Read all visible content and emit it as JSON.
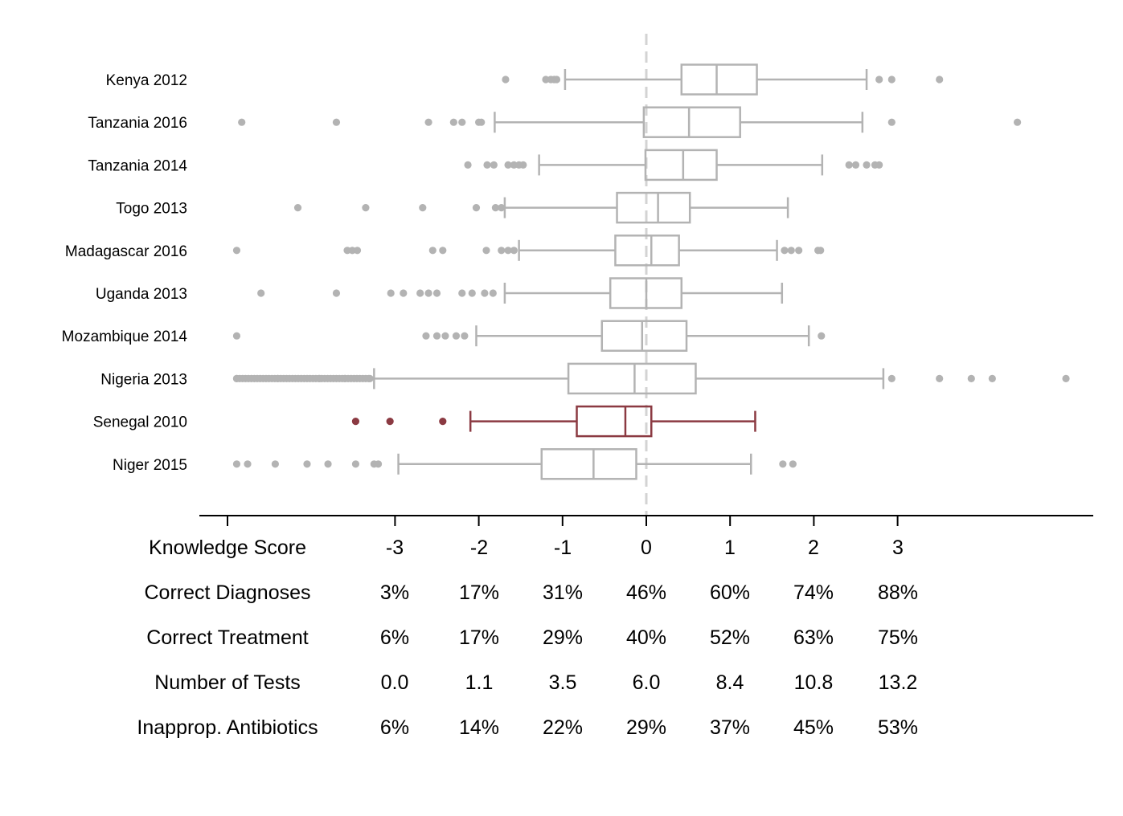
{
  "chart_data": {
    "type": "boxplot",
    "x_range": [
      -3.33,
      5.33
    ],
    "reference_line": 0,
    "colors": {
      "default": "#b3b3b3",
      "highlight": "#8b3a42",
      "reference": "#d3d3d3",
      "axis": "#000000"
    },
    "highlight_category": "Senegal 2010",
    "categories": [
      {
        "label": "Kenya 2012",
        "q1": 0.42,
        "median": 0.84,
        "q3": 1.32,
        "whisker_low": -0.97,
        "whisker_high": 2.63,
        "outliers": [
          -1.68,
          -1.2,
          -1.14,
          -1.1,
          -1.07,
          2.78,
          2.93,
          3.5
        ]
      },
      {
        "label": "Tanzania 2016",
        "q1": -0.03,
        "median": 0.51,
        "q3": 1.12,
        "whisker_low": -1.81,
        "whisker_high": 2.58,
        "outliers": [
          -4.83,
          -3.7,
          -2.6,
          -2.3,
          -2.2,
          -2.0,
          -1.97,
          2.93,
          4.43
        ]
      },
      {
        "label": "Tanzania 2014",
        "q1": -0.01,
        "median": 0.44,
        "q3": 0.84,
        "whisker_low": -1.28,
        "whisker_high": 2.1,
        "outliers": [
          -2.13,
          -1.9,
          -1.82,
          -1.65,
          -1.58,
          -1.52,
          -1.47,
          2.42,
          2.5,
          2.63,
          2.73,
          2.78
        ]
      },
      {
        "label": "Togo 2013",
        "q1": -0.35,
        "median": 0.14,
        "q3": 0.52,
        "whisker_low": -1.69,
        "whisker_high": 1.69,
        "outliers": [
          -4.16,
          -3.35,
          -2.67,
          -2.03,
          -1.8,
          -1.73
        ]
      },
      {
        "label": "Madagascar 2016",
        "q1": -0.37,
        "median": 0.06,
        "q3": 0.39,
        "whisker_low": -1.52,
        "whisker_high": 1.56,
        "outliers": [
          -4.89,
          -3.57,
          -3.51,
          -3.45,
          -2.55,
          -2.43,
          -1.91,
          -1.73,
          -1.65,
          -1.58,
          1.65,
          1.73,
          1.82,
          2.05,
          2.08
        ]
      },
      {
        "label": "Uganda 2013",
        "q1": -0.43,
        "median": 0.0,
        "q3": 0.42,
        "whisker_low": -1.69,
        "whisker_high": 1.62,
        "outliers": [
          -4.6,
          -3.7,
          -3.05,
          -2.9,
          -2.7,
          -2.6,
          -2.5,
          -2.2,
          -2.08,
          -1.93,
          -1.83
        ]
      },
      {
        "label": "Mozambique 2014",
        "q1": -0.53,
        "median": -0.05,
        "q3": 0.48,
        "whisker_low": -2.03,
        "whisker_high": 1.94,
        "outliers": [
          -4.89,
          -2.63,
          -2.5,
          -2.4,
          -2.27,
          -2.17,
          2.09
        ]
      },
      {
        "label": "Nigeria 2013",
        "q1": -0.93,
        "median": -0.14,
        "q3": 0.59,
        "whisker_low": -3.25,
        "whisker_high": 2.83,
        "outliers": [
          -4.89,
          -4.4,
          -3.9,
          -3.6,
          -3.3,
          2.93,
          3.5,
          3.88,
          4.13,
          5.01
        ]
      },
      {
        "label": "Senegal 2010",
        "q1": -0.83,
        "median": -0.25,
        "q3": 0.06,
        "whisker_low": -2.1,
        "whisker_high": 1.3,
        "outliers": [
          -3.47,
          -3.06,
          -2.43
        ]
      },
      {
        "label": "Niger 2015",
        "q1": -1.25,
        "median": -0.63,
        "q3": -0.12,
        "whisker_low": -2.96,
        "whisker_high": 1.25,
        "outliers": [
          -4.89,
          -4.76,
          -4.43,
          -4.05,
          -3.8,
          -3.47,
          -3.25,
          -3.2,
          1.63,
          1.75
        ]
      }
    ],
    "score_table": {
      "ticks": [
        -3,
        -2,
        -1,
        0,
        1,
        2,
        3
      ],
      "rows": [
        {
          "label": "Knowledge Score",
          "values": [
            "-3",
            "-2",
            "-1",
            "0",
            "1",
            "2",
            "3"
          ]
        },
        {
          "label": "Correct Diagnoses",
          "values": [
            "3%",
            "17%",
            "31%",
            "46%",
            "60%",
            "74%",
            "88%"
          ]
        },
        {
          "label": "Correct Treatment",
          "values": [
            "6%",
            "17%",
            "29%",
            "40%",
            "52%",
            "63%",
            "75%"
          ]
        },
        {
          "label": "Number of Tests",
          "values": [
            "0.0",
            "1.1",
            "3.5",
            "6.0",
            "8.4",
            "10.8",
            "13.2"
          ]
        },
        {
          "label": "Inapprop. Antibiotics",
          "values": [
            "6%",
            "14%",
            "22%",
            "29%",
            "37%",
            "45%",
            "53%"
          ]
        }
      ]
    }
  }
}
